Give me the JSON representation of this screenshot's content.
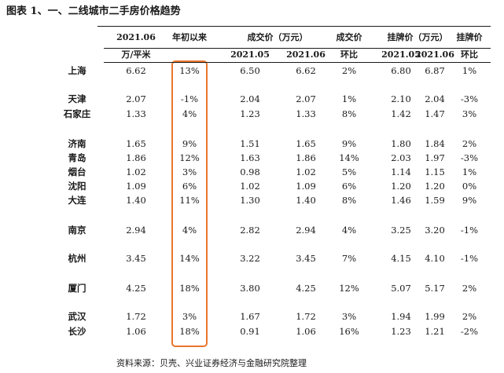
{
  "title": "图表 1、一、二线城市二手房价格趋势",
  "header": {
    "row1": [
      "2021.06",
      "年初以来",
      "成交价（万元）",
      "成交价",
      "挂牌价（万元）",
      "挂牌价"
    ],
    "row2": [
      "万/平米",
      "2021.05",
      "2021.06",
      "环比",
      "2021.05",
      "2021.06",
      "环比"
    ]
  },
  "rows": [
    [
      "上海",
      "6.62",
      "13%",
      "6.50",
      "6.62",
      "2%",
      "6.80",
      "6.87",
      "1%"
    ],
    [
      "天津",
      "2.07",
      "-1%",
      "2.04",
      "2.07",
      "1%",
      "2.10",
      "2.04",
      "-3%"
    ],
    [
      "石家庄",
      "1.33",
      "4%",
      "1.23",
      "1.33",
      "8%",
      "1.42",
      "1.47",
      "3%"
    ],
    [
      "济南",
      "1.65",
      "9%",
      "1.51",
      "1.65",
      "9%",
      "1.80",
      "1.84",
      "2%"
    ],
    [
      "青岛",
      "1.86",
      "12%",
      "1.63",
      "1.86",
      "14%",
      "2.03",
      "1.97",
      "-3%"
    ],
    [
      "烟台",
      "1.02",
      "3%",
      "0.98",
      "1.02",
      "5%",
      "1.14",
      "1.15",
      "1%"
    ],
    [
      "沈阳",
      "1.09",
      "6%",
      "1.02",
      "1.09",
      "6%",
      "1.20",
      "1.20",
      "0%"
    ],
    [
      "大连",
      "1.40",
      "11%",
      "1.30",
      "1.40",
      "8%",
      "1.46",
      "1.59",
      "9%"
    ],
    [
      "南京",
      "2.94",
      "4%",
      "2.82",
      "2.94",
      "4%",
      "3.25",
      "3.20",
      "-1%"
    ],
    [
      "杭州",
      "3.45",
      "14%",
      "3.22",
      "3.45",
      "7%",
      "4.15",
      "4.10",
      "-1%"
    ],
    [
      "厦门",
      "4.25",
      "18%",
      "3.80",
      "4.25",
      "12%",
      "5.07",
      "5.17",
      "2%"
    ],
    [
      "武汉",
      "1.72",
      "3%",
      "1.67",
      "1.72",
      "3%",
      "1.94",
      "1.99",
      "2%"
    ],
    [
      "长沙",
      "1.06",
      "18%",
      "0.91",
      "1.06",
      "16%",
      "1.23",
      "1.21",
      "-2%"
    ]
  ],
  "source": "资料来源：贝壳、兴业证券经济与金融研究院整理",
  "highlight_color": "#e8762c"
}
